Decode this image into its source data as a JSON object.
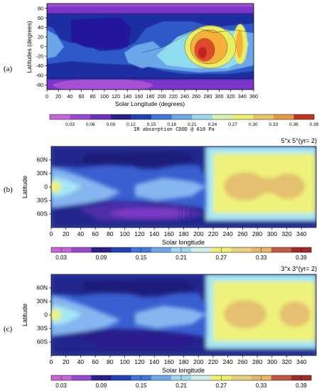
{
  "chart_data": [
    {
      "type": "heatmap",
      "panel_label": "(a)",
      "title": "",
      "xlabel": "Solar Longitude (degrees)",
      "ylabel": "Latitudes (degrees)",
      "xlim": [
        0,
        360
      ],
      "ylim": [
        -90,
        90
      ],
      "xticks": [
        "0",
        "20",
        "40",
        "60",
        "80",
        "100",
        "120",
        "140",
        "160",
        "180",
        "200",
        "220",
        "240",
        "260",
        "280",
        "300",
        "320",
        "340",
        "360"
      ],
      "yticks": [
        "80",
        "60",
        "40",
        "20",
        "0",
        "-20",
        "-40",
        "-60",
        "-80"
      ],
      "colorbar_label": "IR absorption CDOD @ 610 Pa",
      "colorbar_ticks": [
        "0.03",
        "0.06",
        "0.09",
        "0.12",
        "0.15",
        "0.18",
        "0.21",
        "0.24",
        "0.27",
        "0.30",
        "0.33",
        "0.36",
        "0.39"
      ]
    },
    {
      "type": "heatmap",
      "panel_label": "(b)",
      "title": "5°x 5°(yr= 2)",
      "xlabel": "Solar longitude",
      "ylabel": "Latitude",
      "xlim": [
        0,
        360
      ],
      "ylim": [
        -90,
        90
      ],
      "xticks": [
        "0",
        "20",
        "40",
        "60",
        "80",
        "100",
        "120",
        "140",
        "160",
        "180",
        "200",
        "220",
        "240",
        "260",
        "280",
        "300",
        "320",
        "340"
      ],
      "yticks": [
        "60N",
        "30N",
        "0",
        "30S",
        "60S"
      ],
      "colorbar_ticks": [
        "0.03",
        "0.09",
        "0.15",
        "0.21",
        "0.27",
        "0.33",
        "0.39"
      ]
    },
    {
      "type": "heatmap",
      "panel_label": "(c)",
      "title": "3°x 3°(yr= 2)",
      "xlabel": "Solar longitude",
      "ylabel": "Latitude",
      "xlim": [
        0,
        360
      ],
      "ylim": [
        -90,
        90
      ],
      "xticks": [
        "0",
        "20",
        "40",
        "60",
        "80",
        "100",
        "120",
        "140",
        "160",
        "180",
        "200",
        "220",
        "240",
        "260",
        "280",
        "300",
        "320",
        "340"
      ],
      "yticks": [
        "60N",
        "30N",
        "0",
        "30S",
        "60S"
      ],
      "colorbar_ticks": [
        "0.03",
        "0.09",
        "0.15",
        "0.21",
        "0.27",
        "0.33",
        "0.39"
      ]
    }
  ]
}
